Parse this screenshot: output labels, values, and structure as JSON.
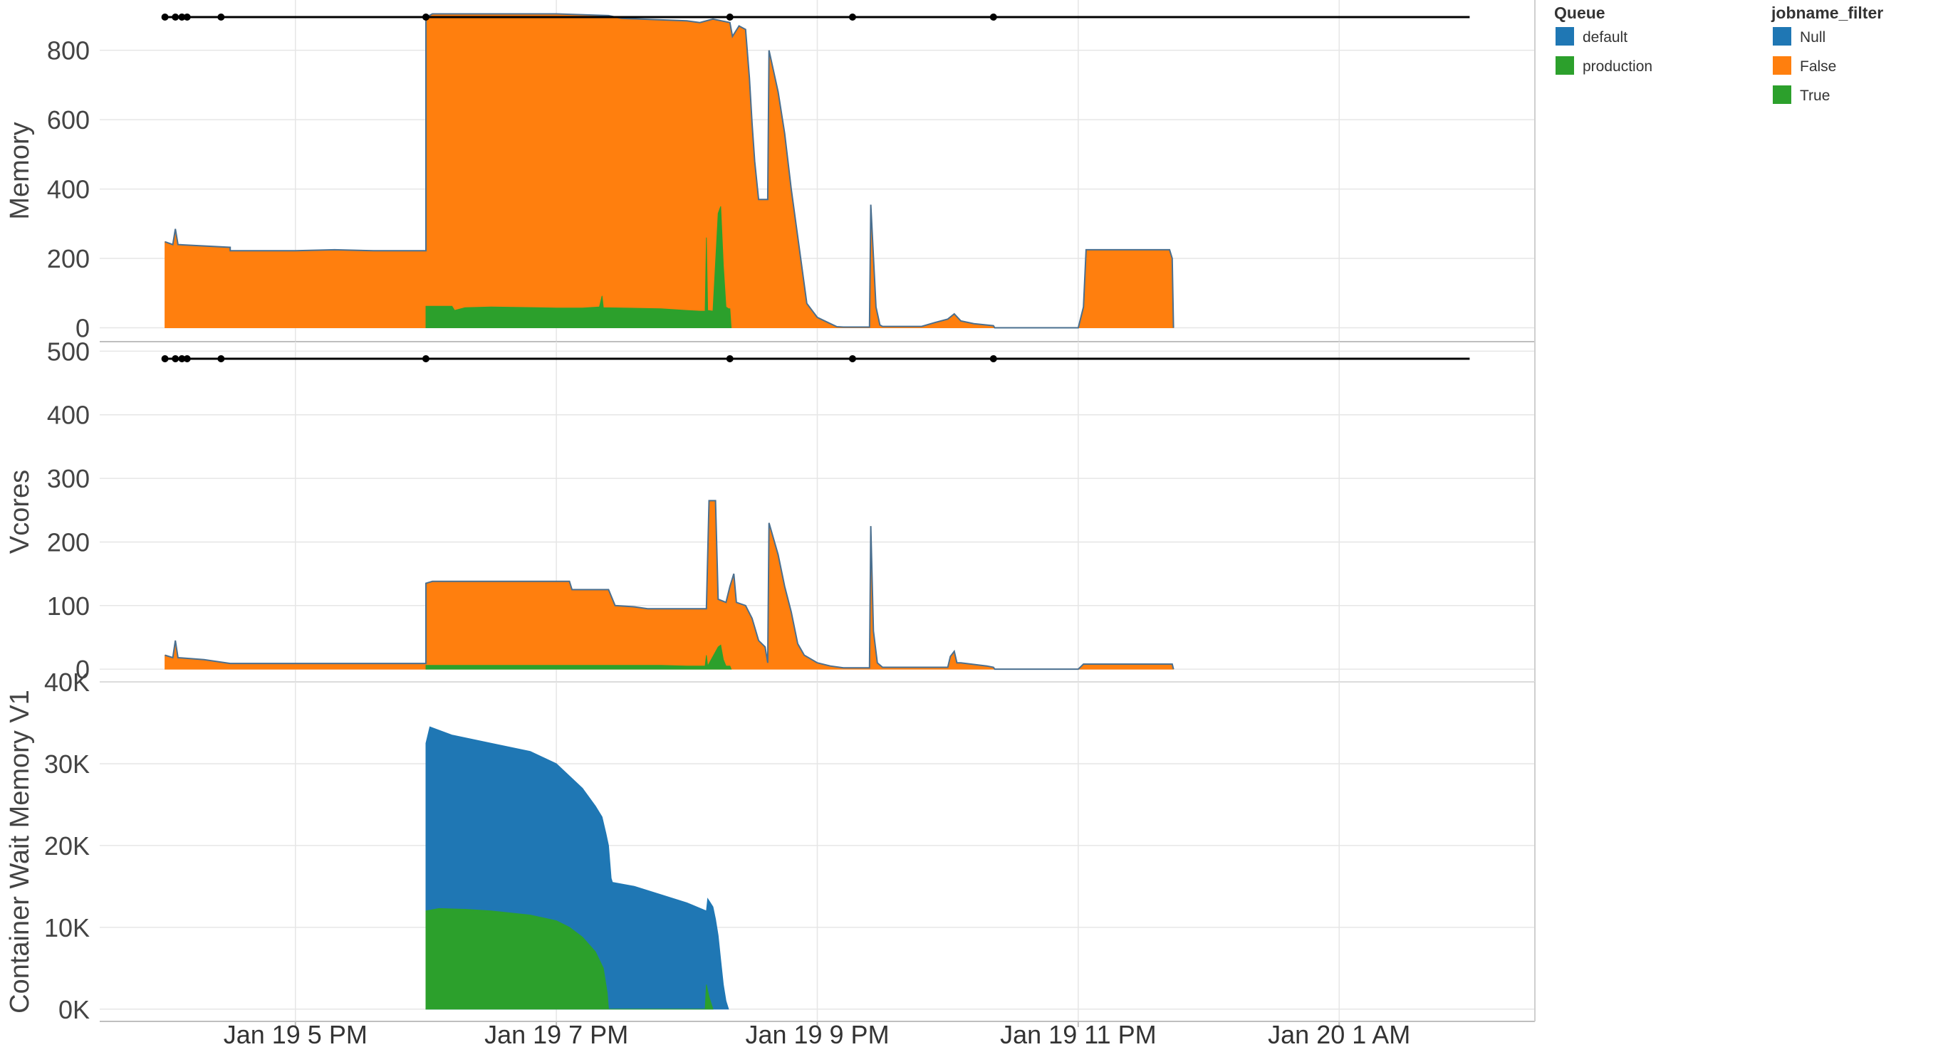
{
  "chart_data": {
    "type": "area",
    "x_axis": {
      "ticks": [
        "Jan 19 5 PM",
        "Jan 19 7 PM",
        "Jan 19 9 PM",
        "Jan 19 11 PM",
        "Jan 20 1 AM"
      ],
      "tick_hours": [
        17,
        19,
        21,
        23,
        25
      ],
      "range_hours": [
        15.5,
        26.5
      ]
    },
    "legends": [
      {
        "title": "Queue",
        "entries": [
          {
            "label": "default",
            "color": "#1f77b4"
          },
          {
            "label": "production",
            "color": "#2ca02c"
          }
        ]
      },
      {
        "title": "jobname_filter",
        "entries": [
          {
            "label": "Null",
            "color": "#1f77b4"
          },
          {
            "label": "False",
            "color": "#ff7f0e"
          },
          {
            "label": "True",
            "color": "#2ca02c"
          }
        ]
      }
    ],
    "event_markers": {
      "x_hours": [
        16.0,
        16.08,
        16.13,
        16.17,
        16.43,
        18.0,
        20.33,
        21.27,
        22.35
      ],
      "line_range_hours": [
        16.0,
        26.0
      ],
      "color": "#000000"
    },
    "panels": [
      {
        "ylabel": "Memory",
        "ylim": [
          -40,
          945
        ],
        "yticks": [
          0,
          200,
          400,
          600,
          800
        ],
        "ytick_labels": [
          "0",
          "200",
          "400",
          "600",
          "800"
        ],
        "grid": true,
        "show_markers": true,
        "series": [
          {
            "name": "False",
            "color": "#ff7f0e",
            "points": [
              [
                16.0,
                248
              ],
              [
                16.06,
                240
              ],
              [
                16.08,
                285
              ],
              [
                16.1,
                240
              ],
              [
                16.5,
                232
              ],
              [
                16.5,
                222
              ],
              [
                17.0,
                222
              ],
              [
                17.3,
                225
              ],
              [
                17.6,
                222
              ],
              [
                18.0,
                222
              ],
              [
                18.0,
                895
              ],
              [
                18.05,
                905
              ],
              [
                18.5,
                905
              ],
              [
                19.0,
                905
              ],
              [
                19.4,
                900
              ],
              [
                19.5,
                892
              ],
              [
                20.0,
                885
              ],
              [
                20.1,
                880
              ],
              [
                20.2,
                890
              ],
              [
                20.33,
                880
              ],
              [
                20.35,
                840
              ],
              [
                20.4,
                870
              ],
              [
                20.45,
                860
              ],
              [
                20.48,
                720
              ],
              [
                20.5,
                590
              ],
              [
                20.52,
                480
              ],
              [
                20.55,
                370
              ],
              [
                20.62,
                370
              ],
              [
                20.63,
                800
              ],
              [
                20.7,
                680
              ],
              [
                20.75,
                560
              ],
              [
                20.8,
                400
              ],
              [
                20.88,
                180
              ],
              [
                20.92,
                70
              ],
              [
                21.0,
                30
              ],
              [
                21.1,
                12
              ],
              [
                21.15,
                3
              ],
              [
                21.2,
                2
              ],
              [
                21.4,
                2
              ],
              [
                21.41,
                355
              ],
              [
                21.45,
                60
              ],
              [
                21.48,
                8
              ],
              [
                21.5,
                4
              ],
              [
                21.8,
                4
              ],
              [
                21.9,
                15
              ],
              [
                22.0,
                25
              ],
              [
                22.05,
                40
              ],
              [
                22.1,
                20
              ],
              [
                22.2,
                12
              ],
              [
                22.35,
                6
              ],
              [
                22.36,
                0
              ],
              [
                23.0,
                0
              ],
              [
                23.04,
                60
              ],
              [
                23.06,
                225
              ],
              [
                23.7,
                225
              ],
              [
                23.72,
                200
              ],
              [
                23.73,
                0
              ]
            ]
          },
          {
            "name": "True",
            "color": "#2ca02c",
            "points": [
              [
                18.0,
                0
              ],
              [
                18.0,
                62
              ],
              [
                18.2,
                62
              ],
              [
                18.22,
                50
              ],
              [
                18.3,
                58
              ],
              [
                18.5,
                60
              ],
              [
                19.0,
                57
              ],
              [
                19.2,
                57
              ],
              [
                19.33,
                60
              ],
              [
                19.35,
                92
              ],
              [
                19.36,
                58
              ],
              [
                19.8,
                55
              ],
              [
                20.0,
                50
              ],
              [
                20.1,
                48
              ],
              [
                20.14,
                48
              ],
              [
                20.15,
                260
              ],
              [
                20.16,
                50
              ],
              [
                20.2,
                48
              ],
              [
                20.24,
                330
              ],
              [
                20.26,
                350
              ],
              [
                20.28,
                180
              ],
              [
                20.3,
                60
              ],
              [
                20.32,
                55
              ],
              [
                20.33,
                55
              ],
              [
                20.34,
                0
              ]
            ]
          }
        ]
      },
      {
        "ylabel": "Vcores",
        "ylim": [
          -20,
          515
        ],
        "yticks": [
          0,
          100,
          200,
          300,
          400,
          500
        ],
        "ytick_labels": [
          "0",
          "100",
          "200",
          "300",
          "400",
          "500"
        ],
        "grid": true,
        "show_markers": true,
        "series": [
          {
            "name": "False",
            "color": "#ff7f0e",
            "points": [
              [
                16.0,
                22
              ],
              [
                16.06,
                18
              ],
              [
                16.08,
                45
              ],
              [
                16.1,
                18
              ],
              [
                16.3,
                15
              ],
              [
                16.5,
                9
              ],
              [
                17.0,
                9
              ],
              [
                17.5,
                9
              ],
              [
                18.0,
                9
              ],
              [
                18.0,
                135
              ],
              [
                18.05,
                138
              ],
              [
                18.5,
                138
              ],
              [
                19.0,
                138
              ],
              [
                19.1,
                138
              ],
              [
                19.12,
                125
              ],
              [
                19.4,
                125
              ],
              [
                19.45,
                100
              ],
              [
                19.6,
                98
              ],
              [
                19.7,
                95
              ],
              [
                20.0,
                95
              ],
              [
                20.15,
                95
              ],
              [
                20.17,
                265
              ],
              [
                20.22,
                265
              ],
              [
                20.24,
                110
              ],
              [
                20.3,
                105
              ],
              [
                20.33,
                130
              ],
              [
                20.36,
                150
              ],
              [
                20.38,
                105
              ],
              [
                20.45,
                100
              ],
              [
                20.5,
                80
              ],
              [
                20.55,
                45
              ],
              [
                20.6,
                35
              ],
              [
                20.62,
                10
              ],
              [
                20.63,
                230
              ],
              [
                20.7,
                180
              ],
              [
                20.75,
                130
              ],
              [
                20.8,
                90
              ],
              [
                20.85,
                40
              ],
              [
                20.9,
                22
              ],
              [
                21.0,
                10
              ],
              [
                21.1,
                5
              ],
              [
                21.2,
                2
              ],
              [
                21.4,
                2
              ],
              [
                21.41,
                225
              ],
              [
                21.43,
                60
              ],
              [
                21.46,
                10
              ],
              [
                21.5,
                3
              ],
              [
                22.0,
                3
              ],
              [
                22.02,
                20
              ],
              [
                22.05,
                28
              ],
              [
                22.07,
                10
              ],
              [
                22.1,
                10
              ],
              [
                22.3,
                5
              ],
              [
                22.35,
                3
              ],
              [
                22.36,
                0
              ],
              [
                23.0,
                0
              ],
              [
                23.04,
                8
              ],
              [
                23.72,
                8
              ],
              [
                23.73,
                0
              ]
            ]
          },
          {
            "name": "True",
            "color": "#2ca02c",
            "points": [
              [
                18.0,
                0
              ],
              [
                18.0,
                6
              ],
              [
                18.5,
                6
              ],
              [
                19.0,
                6
              ],
              [
                19.5,
                6
              ],
              [
                19.8,
                6
              ],
              [
                20.0,
                5
              ],
              [
                20.14,
                5
              ],
              [
                20.15,
                22
              ],
              [
                20.16,
                5
              ],
              [
                20.24,
                35
              ],
              [
                20.26,
                38
              ],
              [
                20.28,
                15
              ],
              [
                20.3,
                5
              ],
              [
                20.33,
                5
              ],
              [
                20.34,
                0
              ]
            ]
          }
        ]
      },
      {
        "ylabel": "Container Wait Memory V1",
        "ylim": [
          -1500,
          40000
        ],
        "yticks": [
          0,
          10000,
          20000,
          30000,
          40000
        ],
        "ytick_labels": [
          "0K",
          "10K",
          "20K",
          "30K",
          "40K"
        ],
        "grid": true,
        "show_markers": false,
        "series": [
          {
            "name": "default",
            "color": "#1f77b4",
            "points": [
              [
                18.0,
                0
              ],
              [
                18.0,
                32500
              ],
              [
                18.03,
                34500
              ],
              [
                18.2,
                33500
              ],
              [
                18.5,
                32500
              ],
              [
                18.8,
                31500
              ],
              [
                19.0,
                30000
              ],
              [
                19.1,
                28500
              ],
              [
                19.2,
                27000
              ],
              [
                19.3,
                24800
              ],
              [
                19.35,
                23500
              ],
              [
                19.38,
                21500
              ],
              [
                19.4,
                20000
              ],
              [
                19.42,
                16000
              ],
              [
                19.43,
                15500
              ],
              [
                19.6,
                15000
              ],
              [
                19.8,
                14000
              ],
              [
                20.0,
                13000
              ],
              [
                20.15,
                12000
              ],
              [
                20.16,
                13500
              ],
              [
                20.18,
                13000
              ],
              [
                20.2,
                12500
              ],
              [
                20.22,
                11000
              ],
              [
                20.24,
                9000
              ],
              [
                20.26,
                6000
              ],
              [
                20.28,
                3000
              ],
              [
                20.3,
                1000
              ],
              [
                20.32,
                0
              ]
            ]
          },
          {
            "name": "production",
            "color": "#2ca02c",
            "points": [
              [
                18.0,
                0
              ],
              [
                18.0,
                12000
              ],
              [
                18.1,
                12300
              ],
              [
                18.3,
                12200
              ],
              [
                18.5,
                12000
              ],
              [
                18.8,
                11500
              ],
              [
                19.0,
                10800
              ],
              [
                19.1,
                10000
              ],
              [
                19.2,
                8800
              ],
              [
                19.3,
                7000
              ],
              [
                19.36,
                5000
              ],
              [
                19.39,
                2000
              ],
              [
                19.4,
                0
              ],
              [
                20.14,
                0
              ],
              [
                20.15,
                3000
              ],
              [
                20.17,
                1500
              ],
              [
                20.2,
                0
              ]
            ]
          }
        ]
      }
    ]
  }
}
